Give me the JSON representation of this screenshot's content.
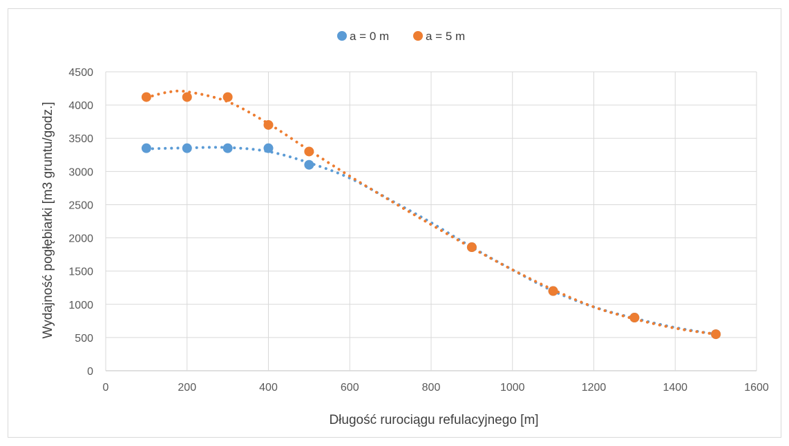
{
  "chart_data": {
    "type": "scatter",
    "title": "",
    "xlabel": "Długość rurociągu refulacyjnego [m]",
    "ylabel": "Wydajność pogłębiarki [m3 gruntu/godz.]",
    "xlim": [
      0,
      1600
    ],
    "ylim": [
      0,
      4500
    ],
    "x_ticks": [
      0,
      200,
      400,
      600,
      800,
      1000,
      1200,
      1400,
      1600
    ],
    "y_ticks": [
      0,
      500,
      1000,
      1500,
      2000,
      2500,
      3000,
      3500,
      4000,
      4500
    ],
    "grid": true,
    "legend_position": "top",
    "trendline": "dotted polynomial",
    "series": [
      {
        "name": "a = 0 m",
        "color": "#5b9bd5",
        "points": [
          {
            "x": 100,
            "y": 3350
          },
          {
            "x": 200,
            "y": 3350
          },
          {
            "x": 300,
            "y": 3350
          },
          {
            "x": 400,
            "y": 3350
          },
          {
            "x": 500,
            "y": 3100
          },
          {
            "x": 900,
            "y": 1860
          },
          {
            "x": 1100,
            "y": 1200
          },
          {
            "x": 1300,
            "y": 800
          },
          {
            "x": 1500,
            "y": 550
          }
        ],
        "trend": [
          {
            "x": 100,
            "y": 3340
          },
          {
            "x": 200,
            "y": 3355
          },
          {
            "x": 300,
            "y": 3360
          },
          {
            "x": 400,
            "y": 3300
          },
          {
            "x": 500,
            "y": 3130
          },
          {
            "x": 600,
            "y": 2900
          },
          {
            "x": 700,
            "y": 2570
          },
          {
            "x": 800,
            "y": 2230
          },
          {
            "x": 900,
            "y": 1860
          },
          {
            "x": 1000,
            "y": 1520
          },
          {
            "x": 1100,
            "y": 1200
          },
          {
            "x": 1200,
            "y": 960
          },
          {
            "x": 1300,
            "y": 790
          },
          {
            "x": 1400,
            "y": 650
          },
          {
            "x": 1500,
            "y": 550
          }
        ]
      },
      {
        "name": "a = 5 m",
        "color": "#ed7d31",
        "points": [
          {
            "x": 100,
            "y": 4120
          },
          {
            "x": 200,
            "y": 4120
          },
          {
            "x": 300,
            "y": 4120
          },
          {
            "x": 400,
            "y": 3700
          },
          {
            "x": 500,
            "y": 3300
          },
          {
            "x": 900,
            "y": 1860
          },
          {
            "x": 1100,
            "y": 1200
          },
          {
            "x": 1300,
            "y": 800
          },
          {
            "x": 1500,
            "y": 550
          }
        ],
        "trend": [
          {
            "x": 100,
            "y": 4110
          },
          {
            "x": 150,
            "y": 4190
          },
          {
            "x": 200,
            "y": 4200
          },
          {
            "x": 300,
            "y": 4050
          },
          {
            "x": 400,
            "y": 3720
          },
          {
            "x": 500,
            "y": 3320
          },
          {
            "x": 600,
            "y": 2930
          },
          {
            "x": 700,
            "y": 2560
          },
          {
            "x": 800,
            "y": 2200
          },
          {
            "x": 900,
            "y": 1850
          },
          {
            "x": 1000,
            "y": 1520
          },
          {
            "x": 1100,
            "y": 1220
          },
          {
            "x": 1200,
            "y": 960
          },
          {
            "x": 1300,
            "y": 780
          },
          {
            "x": 1400,
            "y": 640
          },
          {
            "x": 1500,
            "y": 550
          }
        ]
      }
    ]
  }
}
